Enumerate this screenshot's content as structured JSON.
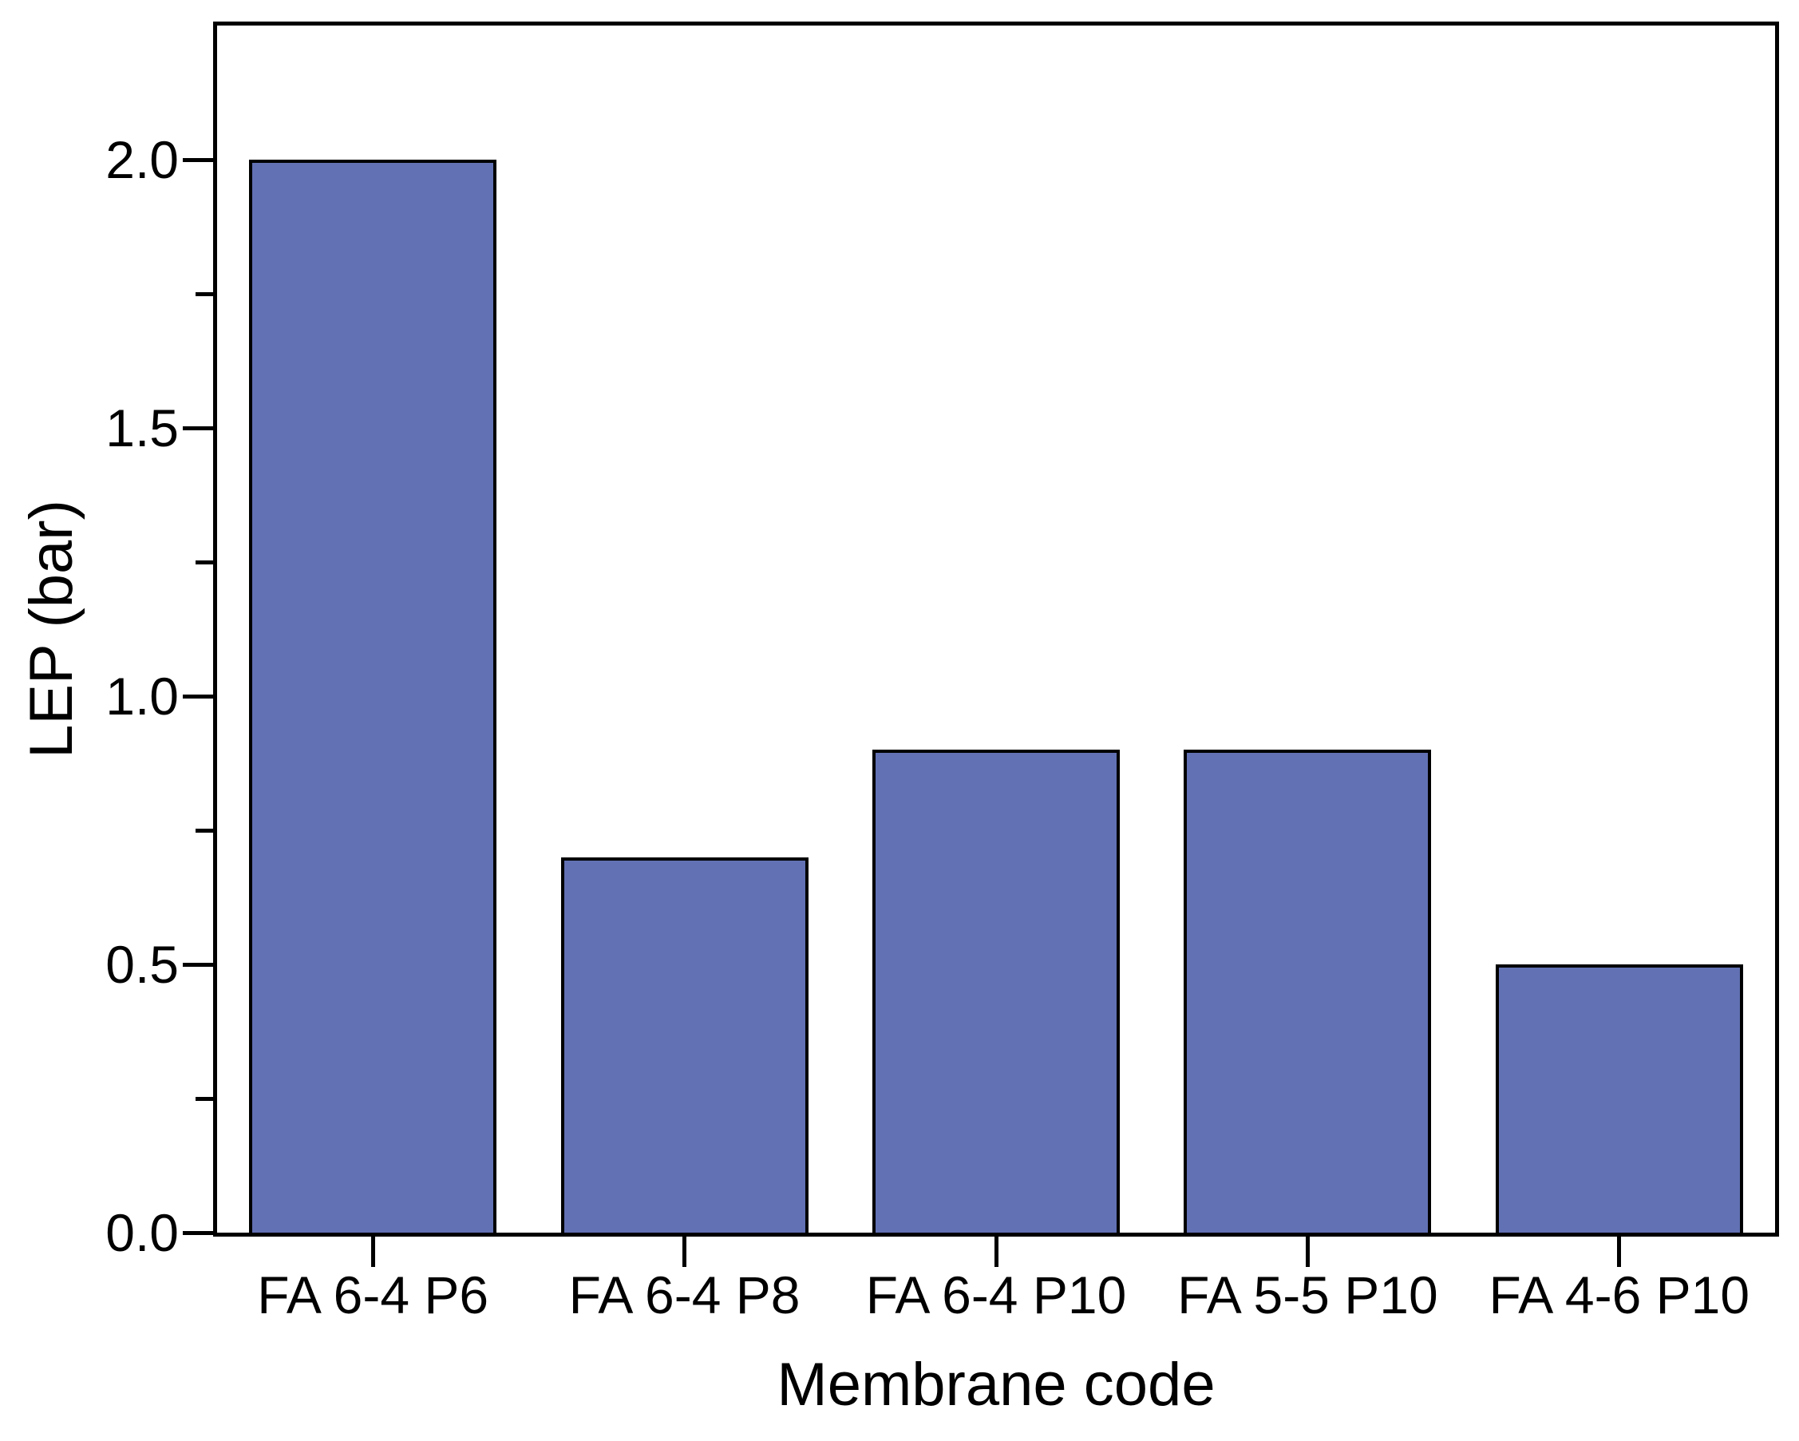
{
  "chart_data": {
    "type": "bar",
    "title": "",
    "categories": [
      "FA 6-4 P6",
      "FA 6-4 P8",
      "FA 6-4 P10",
      "FA 5-5 P10",
      "FA 4-6 P10"
    ],
    "values": [
      2.0,
      0.7,
      0.9,
      0.9,
      0.5
    ],
    "xlabel": "Membrane code",
    "ylabel": "LEP (bar)",
    "ylim": [
      0,
      2.25
    ],
    "y_major_ticks": [
      0.0,
      0.5,
      1.0,
      1.5,
      2.0
    ],
    "y_major_tick_labels": [
      "0.0",
      "0.5",
      "1.0",
      "1.5",
      "2.0"
    ],
    "y_minor_ticks": [
      0.25,
      0.75,
      1.25,
      1.75
    ],
    "grid": false,
    "legend": null,
    "bar_fill_color": "#6271B3",
    "bar_border_color": "#000000",
    "frame_color": "#000000",
    "background_color": "#FFFFFF"
  }
}
